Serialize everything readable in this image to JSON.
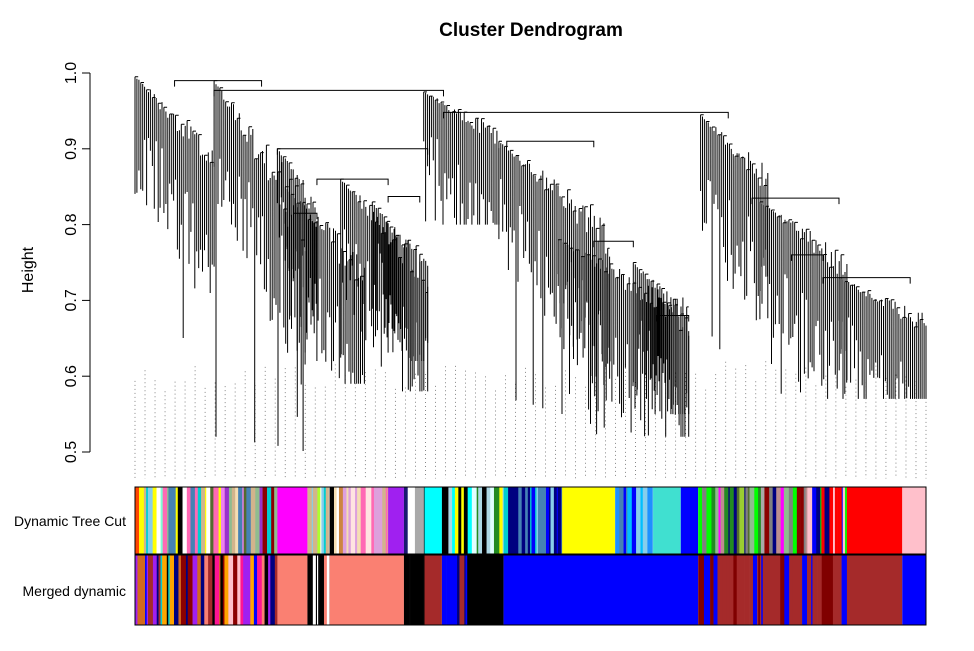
{
  "chart_data": {
    "type": "dendrogram",
    "title": "Cluster Dendrogram",
    "xlabel": "",
    "ylabel": "Height",
    "ylim": [
      0.5,
      1.0
    ],
    "yticks": [
      "0.5",
      "0.6",
      "0.7",
      "0.8",
      "0.9",
      "1.0"
    ],
    "yticks_values": [
      0.5,
      0.6,
      0.7,
      0.8,
      0.9,
      1.0
    ],
    "leaf_count": 1000,
    "branches": [
      {
        "name": "branch-1",
        "start": 0.0,
        "end": 0.1,
        "top": 0.995,
        "min": 0.86,
        "floor": 0.62
      },
      {
        "name": "branch-2",
        "start": 0.1,
        "end": 0.215,
        "top": 0.99,
        "min": 0.75,
        "floor": 0.5
      },
      {
        "name": "branch-3",
        "start": 0.18,
        "end": 0.23,
        "top": 0.9,
        "min": 0.8,
        "floor": 0.62
      },
      {
        "name": "branch-4",
        "start": 0.19,
        "end": 0.29,
        "top": 0.85,
        "min": 0.7,
        "floor": 0.59
      },
      {
        "name": "branch-5",
        "start": 0.26,
        "end": 0.37,
        "top": 0.86,
        "min": 0.7,
        "floor": 0.58
      },
      {
        "name": "branch-6",
        "start": 0.3,
        "end": 0.37,
        "top": 0.83,
        "min": 0.7,
        "floor": 0.62
      },
      {
        "name": "branch-7",
        "start": 0.365,
        "end": 0.46,
        "top": 0.975,
        "min": 0.9,
        "floor": 0.8
      },
      {
        "name": "branch-8",
        "start": 0.46,
        "end": 0.6,
        "top": 0.91,
        "min": 0.75,
        "floor": 0.53
      },
      {
        "name": "branch-9",
        "start": 0.535,
        "end": 0.7,
        "top": 0.78,
        "min": 0.65,
        "floor": 0.52
      },
      {
        "name": "branch-10",
        "start": 0.63,
        "end": 0.7,
        "top": 0.75,
        "min": 0.65,
        "floor": 0.55
      },
      {
        "name": "branch-11",
        "start": 0.715,
        "end": 0.8,
        "top": 0.945,
        "min": 0.83,
        "floor": 0.62
      },
      {
        "name": "branch-12",
        "start": 0.79,
        "end": 0.9,
        "top": 0.83,
        "min": 0.72,
        "floor": 0.57
      },
      {
        "name": "branch-13",
        "start": 0.89,
        "end": 1.0,
        "top": 0.73,
        "min": 0.65,
        "floor": 0.57
      }
    ],
    "merges": [
      {
        "a": 0.05,
        "b": 0.16,
        "height": 0.99
      },
      {
        "a": 0.1,
        "b": 0.39,
        "height": 0.977
      },
      {
        "a": 0.39,
        "b": 0.75,
        "height": 0.948
      },
      {
        "a": 0.18,
        "b": 0.37,
        "height": 0.9
      },
      {
        "a": 0.23,
        "b": 0.32,
        "height": 0.86
      },
      {
        "a": 0.32,
        "b": 0.36,
        "height": 0.837
      },
      {
        "a": 0.2,
        "b": 0.23,
        "height": 0.815
      },
      {
        "a": 0.47,
        "b": 0.58,
        "height": 0.91
      },
      {
        "a": 0.58,
        "b": 0.63,
        "height": 0.778
      },
      {
        "a": 0.66,
        "b": 0.7,
        "height": 0.68
      },
      {
        "a": 0.78,
        "b": 0.89,
        "height": 0.835
      },
      {
        "a": 0.87,
        "b": 0.98,
        "height": 0.73
      },
      {
        "a": 0.83,
        "b": 0.87,
        "height": 0.76
      }
    ],
    "color_bars": [
      {
        "label": "Dynamic Tree Cut",
        "segments": [
          {
            "start": 0.0,
            "end": 0.18,
            "colors": [
              "#8fbc8f",
              "#ee82ee",
              "#4682b4",
              "#8b0000",
              "#ffff00",
              "#7fffd4",
              "#9932cc",
              "#228b22",
              "#ff69b4",
              "#00ced1",
              "#f5deb3",
              "#000000",
              "#ffa500",
              "#556b2f",
              "#87ceeb",
              "#d2b48c",
              "#ff4500",
              "#ffffff"
            ]
          },
          {
            "start": 0.18,
            "end": 0.218,
            "color": "#ff00ff"
          },
          {
            "start": 0.218,
            "end": 0.246,
            "colors": [
              "#adff2f",
              "#87ceeb",
              "#ffffff",
              "#d2b48c",
              "#00ced1",
              "#000000"
            ]
          },
          {
            "start": 0.246,
            "end": 0.32,
            "colors": [
              "#dda0dd",
              "#ffffff",
              "#d2b48c",
              "#ff69b4",
              "#cd853f",
              "#000000",
              "#f5deb3",
              "#ffe4e1"
            ]
          },
          {
            "start": 0.32,
            "end": 0.34,
            "color": "#a020f0"
          },
          {
            "start": 0.34,
            "end": 0.366,
            "colors": [
              "#191970",
              "#000000",
              "#ffffff",
              "#a9a9a9"
            ]
          },
          {
            "start": 0.366,
            "end": 0.388,
            "color": "#00ffff"
          },
          {
            "start": 0.388,
            "end": 0.466,
            "colors": [
              "#e0ffff",
              "#000000",
              "#adff2f",
              "#ffffff",
              "#228b22",
              "#ffff00",
              "#00ffff",
              "#add8e6",
              "#000000"
            ]
          },
          {
            "start": 0.466,
            "end": 0.54,
            "colors": [
              "#00ced1",
              "#0000ff",
              "#87ceeb",
              "#000080",
              "#4682b4"
            ]
          },
          {
            "start": 0.54,
            "end": 0.607,
            "color": "#ffff00"
          },
          {
            "start": 0.607,
            "end": 0.655,
            "colors": [
              "#0000ff",
              "#00bfff",
              "#87ceeb",
              "#4682b4",
              "#1e90ff"
            ]
          },
          {
            "start": 0.655,
            "end": 0.69,
            "color": "#40e0d0"
          },
          {
            "start": 0.69,
            "end": 0.712,
            "color": "#0000ff"
          },
          {
            "start": 0.712,
            "end": 0.85,
            "colors": [
              "#8b0000",
              "#ff1493",
              "#a9a9a9",
              "#00ff00",
              "#556b2f",
              "#9acd32",
              "#ff00ff",
              "#8fbc8f",
              "#808080",
              "#228b22",
              "#00ff00",
              "#bc8f8f",
              "#cd5c5c",
              "#000080"
            ]
          },
          {
            "start": 0.85,
            "end": 0.9,
            "colors": [
              "#0000ff",
              "#ff0000",
              "#000080",
              "#ffc0cb",
              "#00ff00"
            ]
          },
          {
            "start": 0.9,
            "end": 0.97,
            "color": "#ff0000"
          },
          {
            "start": 0.97,
            "end": 1.0,
            "color": "#ffc0cb"
          }
        ]
      },
      {
        "label": "Merged dynamic",
        "segments": [
          {
            "start": 0.0,
            "end": 0.18,
            "colors": [
              "#a020f0",
              "#000000",
              "#ffa500",
              "#0000ff",
              "#8b0000",
              "#a52a2a",
              "#ffc0cb",
              "#00ced1",
              "#ff1493",
              "#fa8072",
              "#000080",
              "#d2691e"
            ]
          },
          {
            "start": 0.18,
            "end": 0.218,
            "color": "#fa8072"
          },
          {
            "start": 0.218,
            "end": 0.246,
            "colors": [
              "#000000",
              "#fa8072",
              "#000000",
              "#ffffff"
            ]
          },
          {
            "start": 0.246,
            "end": 0.34,
            "color": "#fa8072"
          },
          {
            "start": 0.34,
            "end": 0.366,
            "colors": [
              "#000000",
              "#fa8072",
              "#000000"
            ]
          },
          {
            "start": 0.366,
            "end": 0.388,
            "color": "#a52a2a"
          },
          {
            "start": 0.388,
            "end": 0.42,
            "colors": [
              "#0000ff",
              "#000080",
              "#a52a2a",
              "#0000ff"
            ]
          },
          {
            "start": 0.42,
            "end": 0.466,
            "color": "#000000"
          },
          {
            "start": 0.466,
            "end": 0.712,
            "color": "#0000ff"
          },
          {
            "start": 0.712,
            "end": 0.9,
            "colors": [
              "#a52a2a",
              "#0000ff",
              "#a52a2a",
              "#800000",
              "#a52a2a"
            ]
          },
          {
            "start": 0.9,
            "end": 0.97,
            "color": "#a52a2a"
          },
          {
            "start": 0.97,
            "end": 1.0,
            "color": "#0000ff"
          }
        ]
      }
    ]
  }
}
